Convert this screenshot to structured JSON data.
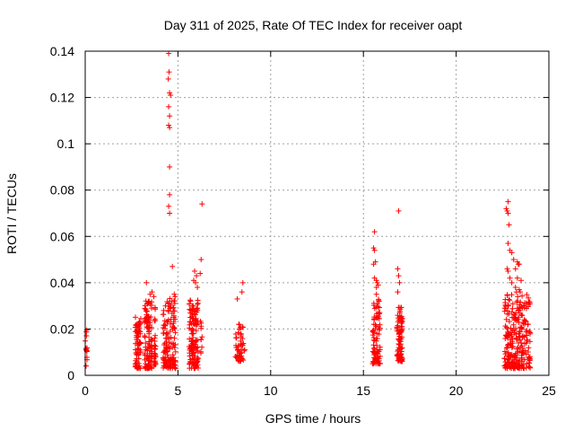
{
  "chart_data": {
    "type": "scatter",
    "title": "Day 311 of 2025, Rate Of TEC Index for receiver oapt",
    "xlabel": "GPS time / hours",
    "ylabel": "ROTI / TECUs",
    "xlim": [
      0,
      25
    ],
    "ylim": [
      0,
      0.14
    ],
    "x_ticks": [
      0,
      5,
      10,
      15,
      20,
      25
    ],
    "y_ticks": [
      0,
      0.02,
      0.04,
      0.06,
      0.08,
      0.1,
      0.12,
      0.14
    ],
    "x_tick_labels": [
      "0",
      "5",
      "10",
      "15",
      "20",
      "25"
    ],
    "y_tick_labels": [
      "0",
      "0.02",
      "0.04",
      "0.06",
      "0.08",
      "0.1",
      "0.12",
      "0.14"
    ],
    "grid": true,
    "marker": "plus",
    "color": "#ff0000",
    "clusters": [
      {
        "x_range": [
          0.0,
          0.1
        ],
        "n": 12,
        "y_range": [
          0.004,
          0.021
        ]
      },
      {
        "x_range": [
          2.7,
          3.0
        ],
        "n": 70,
        "y_range": [
          0.003,
          0.026
        ]
      },
      {
        "x_range": [
          3.2,
          3.6
        ],
        "n": 110,
        "y_range": [
          0.003,
          0.033
        ]
      },
      {
        "x_range": [
          3.7,
          3.8
        ],
        "n": 30,
        "y_range": [
          0.004,
          0.03
        ]
      },
      {
        "x_range": [
          4.2,
          4.9
        ],
        "n": 140,
        "y_range": [
          0.003,
          0.034
        ]
      },
      {
        "x_range": [
          5.6,
          6.1
        ],
        "n": 130,
        "y_range": [
          0.003,
          0.033
        ]
      },
      {
        "x_range": [
          6.2,
          6.3
        ],
        "n": 10,
        "y_range": [
          0.008,
          0.025
        ]
      },
      {
        "x_range": [
          8.1,
          8.6
        ],
        "n": 50,
        "y_range": [
          0.006,
          0.023
        ]
      },
      {
        "x_range": [
          15.5,
          15.9
        ],
        "n": 90,
        "y_range": [
          0.005,
          0.033
        ]
      },
      {
        "x_range": [
          16.8,
          17.1
        ],
        "n": 90,
        "y_range": [
          0.006,
          0.03
        ]
      },
      {
        "x_range": [
          22.6,
          24.0
        ],
        "n": 260,
        "y_range": [
          0.003,
          0.035
        ]
      }
    ],
    "points": [
      [
        3.3,
        0.04
      ],
      [
        3.5,
        0.035
      ],
      [
        3.6,
        0.036
      ],
      [
        3.7,
        0.034
      ],
      [
        4.5,
        0.139
      ],
      [
        4.48,
        0.128
      ],
      [
        4.52,
        0.131
      ],
      [
        4.55,
        0.122
      ],
      [
        4.6,
        0.121
      ],
      [
        4.5,
        0.116
      ],
      [
        4.55,
        0.112
      ],
      [
        4.5,
        0.108
      ],
      [
        4.55,
        0.107
      ],
      [
        4.55,
        0.09
      ],
      [
        4.55,
        0.078
      ],
      [
        4.5,
        0.073
      ],
      [
        4.55,
        0.07
      ],
      [
        4.7,
        0.047
      ],
      [
        4.8,
        0.035
      ],
      [
        4.85,
        0.034
      ],
      [
        5.9,
        0.045
      ],
      [
        6.0,
        0.043
      ],
      [
        5.85,
        0.041
      ],
      [
        5.95,
        0.04
      ],
      [
        6.05,
        0.038
      ],
      [
        6.3,
        0.074
      ],
      [
        6.25,
        0.05
      ],
      [
        6.2,
        0.044
      ],
      [
        8.2,
        0.033
      ],
      [
        8.5,
        0.04
      ],
      [
        8.45,
        0.036
      ],
      [
        15.6,
        0.062
      ],
      [
        15.55,
        0.055
      ],
      [
        15.6,
        0.054
      ],
      [
        15.65,
        0.049
      ],
      [
        15.55,
        0.048
      ],
      [
        15.6,
        0.042
      ],
      [
        15.7,
        0.041
      ],
      [
        15.75,
        0.04
      ],
      [
        15.7,
        0.038
      ],
      [
        15.8,
        0.039
      ],
      [
        15.7,
        0.035
      ],
      [
        16.9,
        0.071
      ],
      [
        16.85,
        0.046
      ],
      [
        16.9,
        0.043
      ],
      [
        16.95,
        0.04
      ],
      [
        16.85,
        0.036
      ],
      [
        22.8,
        0.075
      ],
      [
        22.7,
        0.072
      ],
      [
        22.75,
        0.071
      ],
      [
        22.8,
        0.07
      ],
      [
        22.85,
        0.065
      ],
      [
        22.8,
        0.057
      ],
      [
        22.9,
        0.054
      ],
      [
        23.0,
        0.053
      ],
      [
        23.1,
        0.05
      ],
      [
        23.3,
        0.049
      ],
      [
        23.35,
        0.048
      ],
      [
        23.4,
        0.048
      ],
      [
        23.2,
        0.046
      ],
      [
        22.75,
        0.046
      ],
      [
        22.8,
        0.045
      ],
      [
        22.9,
        0.042
      ],
      [
        23.3,
        0.042
      ],
      [
        23.5,
        0.041
      ],
      [
        23.0,
        0.04
      ],
      [
        23.2,
        0.038
      ],
      [
        23.4,
        0.037
      ],
      [
        23.25,
        0.036
      ],
      [
        23.45,
        0.036
      ]
    ]
  }
}
